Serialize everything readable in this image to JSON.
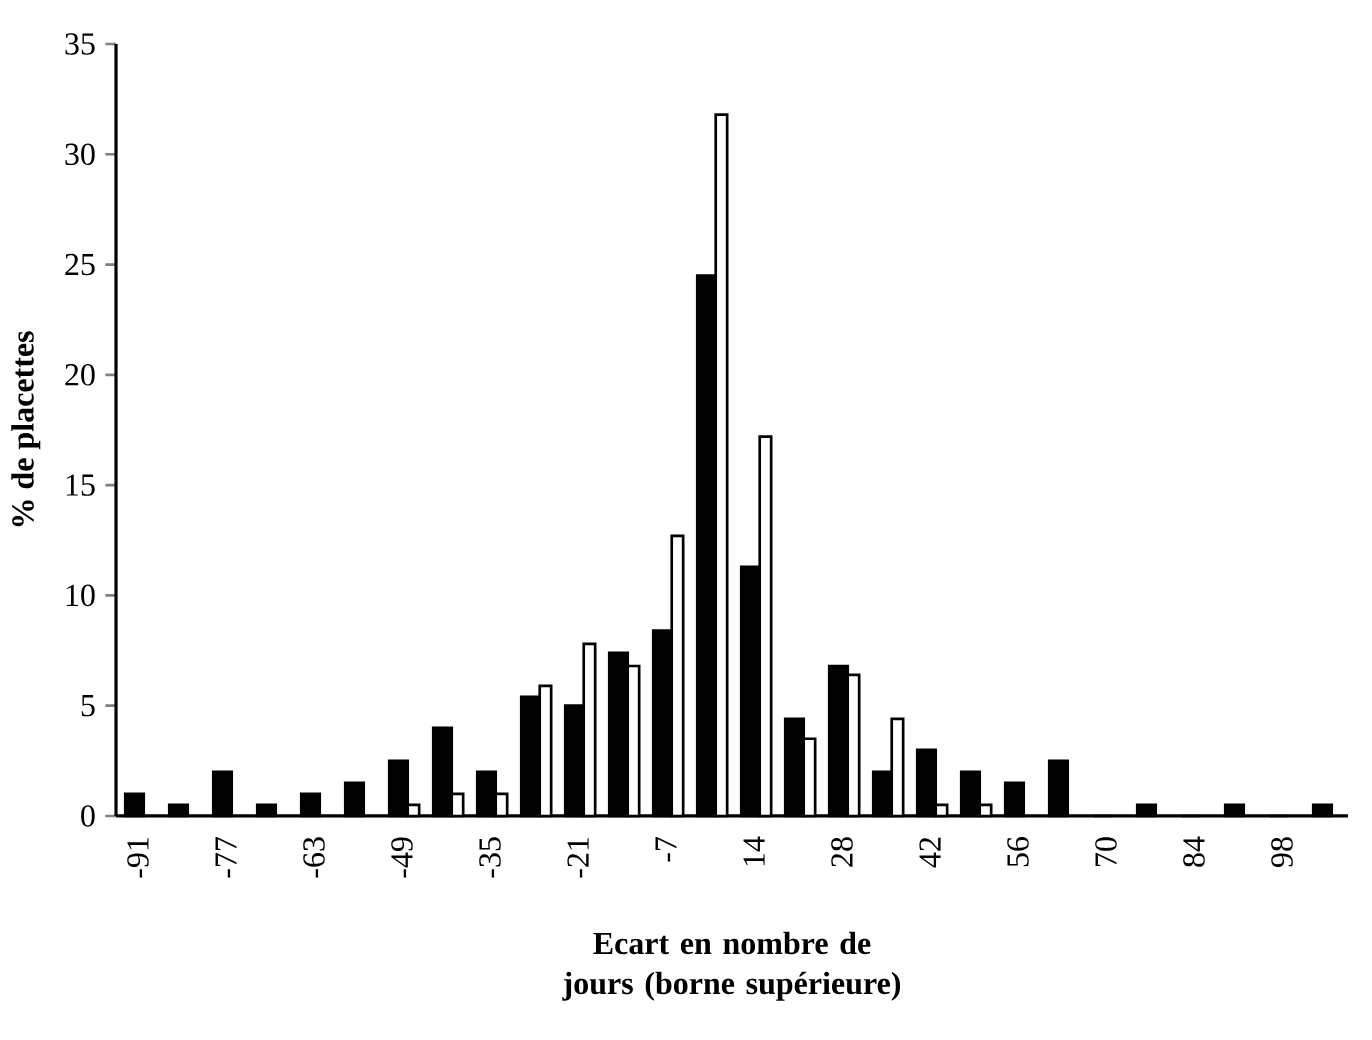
{
  "chart_data": {
    "type": "bar",
    "xlabel": "Ecart en nombre de jours (borne supérieure)",
    "ylabel": "% de placettes",
    "categories": [
      "-91",
      null,
      "-77",
      null,
      "-63",
      null,
      "-49",
      null,
      "-35",
      null,
      "-21",
      null,
      "-7",
      null,
      "14",
      null,
      "28",
      null,
      "42",
      null,
      "56",
      null,
      "70",
      null,
      "84",
      null,
      "98",
      null
    ],
    "series": [
      {
        "color": "#000000",
        "values": [
          1.0,
          0.5,
          2.0,
          0.5,
          1.0,
          1.5,
          2.5,
          4.0,
          2.0,
          5.4,
          5.0,
          7.4,
          8.4,
          24.5,
          11.3,
          4.4,
          6.8,
          2.0,
          3.0,
          2.0,
          1.5,
          2.5,
          0,
          0.5,
          0,
          0.5,
          0,
          0.5
        ]
      },
      {
        "color": "#ffffff",
        "values": [
          null,
          null,
          null,
          null,
          null,
          null,
          0.5,
          1.0,
          1.0,
          5.9,
          7.8,
          6.8,
          12.7,
          31.8,
          17.2,
          3.5,
          6.4,
          4.4,
          0.5,
          0.5,
          null,
          null,
          null,
          null,
          null,
          null,
          null,
          null
        ]
      }
    ],
    "ylim": [
      0,
      35
    ],
    "yticks": [
      0,
      5,
      10,
      15,
      20,
      25,
      30,
      35
    ]
  }
}
